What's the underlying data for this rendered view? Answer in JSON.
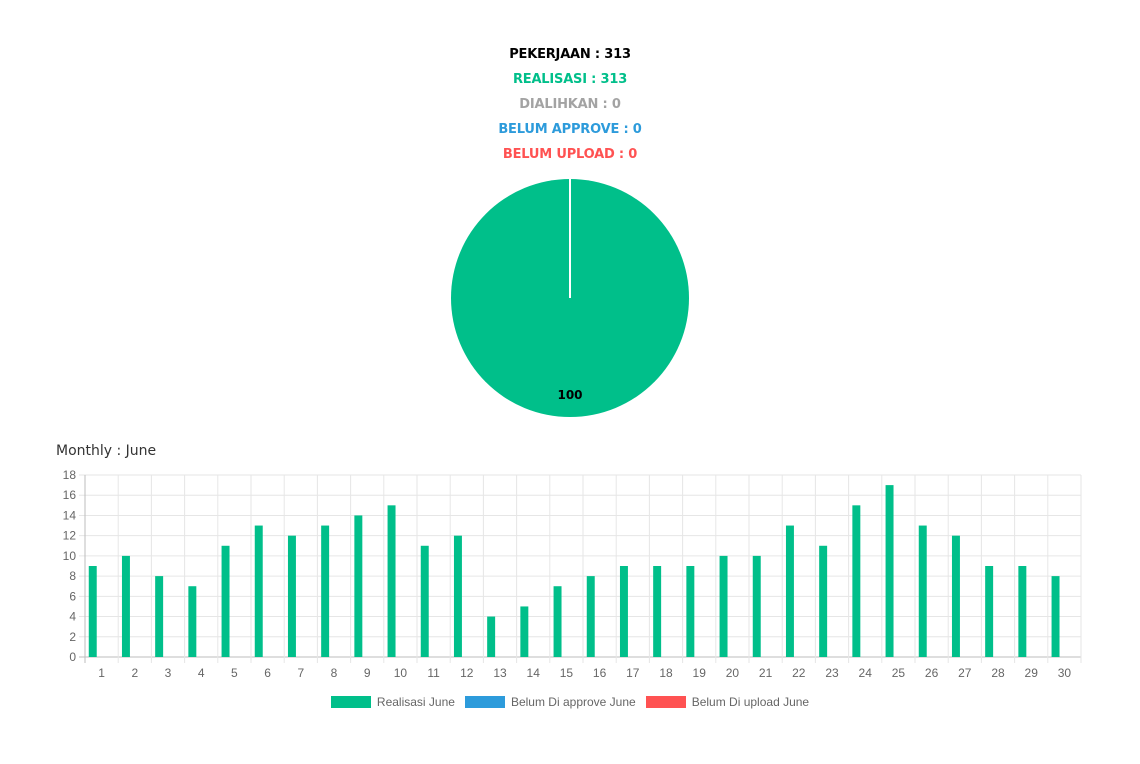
{
  "summary": {
    "pekerjaan": "PEKERJAAN : 313",
    "realisasi": "REALISASI : 313",
    "dialihkan": "DIALIHKAN : 0",
    "belum_approve": "BELUM APPROVE : 0",
    "belum_upload": "BELUM UPLOAD : 0"
  },
  "colors": {
    "realisasi": "#00bf8a",
    "dialihkan": "#a3a3a3",
    "belum_approve": "#2d9bdb",
    "belum_upload": "#ff5252",
    "text_dark": "#000000"
  },
  "monthly_title": "Monthly : June",
  "chart_data": [
    {
      "type": "pie",
      "categories": [
        "Realisasi"
      ],
      "values": [
        100
      ],
      "data_labels": [
        "100"
      ]
    },
    {
      "type": "bar",
      "categories": [
        "1",
        "2",
        "3",
        "4",
        "5",
        "6",
        "7",
        "8",
        "9",
        "10",
        "11",
        "12",
        "13",
        "14",
        "15",
        "16",
        "17",
        "18",
        "19",
        "20",
        "21",
        "22",
        "23",
        "24",
        "25",
        "26",
        "27",
        "28",
        "29",
        "30"
      ],
      "series": [
        {
          "name": "Realisasi June",
          "color": "#00bf8a",
          "values": [
            9,
            10,
            8,
            7,
            11,
            13,
            12,
            13,
            14,
            15,
            11,
            12,
            4,
            5,
            7,
            8,
            9,
            9,
            9,
            10,
            10,
            13,
            11,
            15,
            17,
            13,
            12,
            9,
            9,
            8
          ]
        },
        {
          "name": "Belum Di approve June",
          "color": "#2d9bdb",
          "values": [
            0,
            0,
            0,
            0,
            0,
            0,
            0,
            0,
            0,
            0,
            0,
            0,
            0,
            0,
            0,
            0,
            0,
            0,
            0,
            0,
            0,
            0,
            0,
            0,
            0,
            0,
            0,
            0,
            0,
            0
          ]
        },
        {
          "name": "Belum Di upload June",
          "color": "#ff5252",
          "values": [
            0,
            0,
            0,
            0,
            0,
            0,
            0,
            0,
            0,
            0,
            0,
            0,
            0,
            0,
            0,
            0,
            0,
            0,
            0,
            0,
            0,
            0,
            0,
            0,
            0,
            0,
            0,
            0,
            0,
            0
          ]
        }
      ],
      "yticks": [
        0,
        2,
        4,
        6,
        8,
        10,
        12,
        14,
        16,
        18
      ],
      "ylim": [
        0,
        18
      ],
      "grid": true,
      "legend_position": "bottom"
    }
  ]
}
